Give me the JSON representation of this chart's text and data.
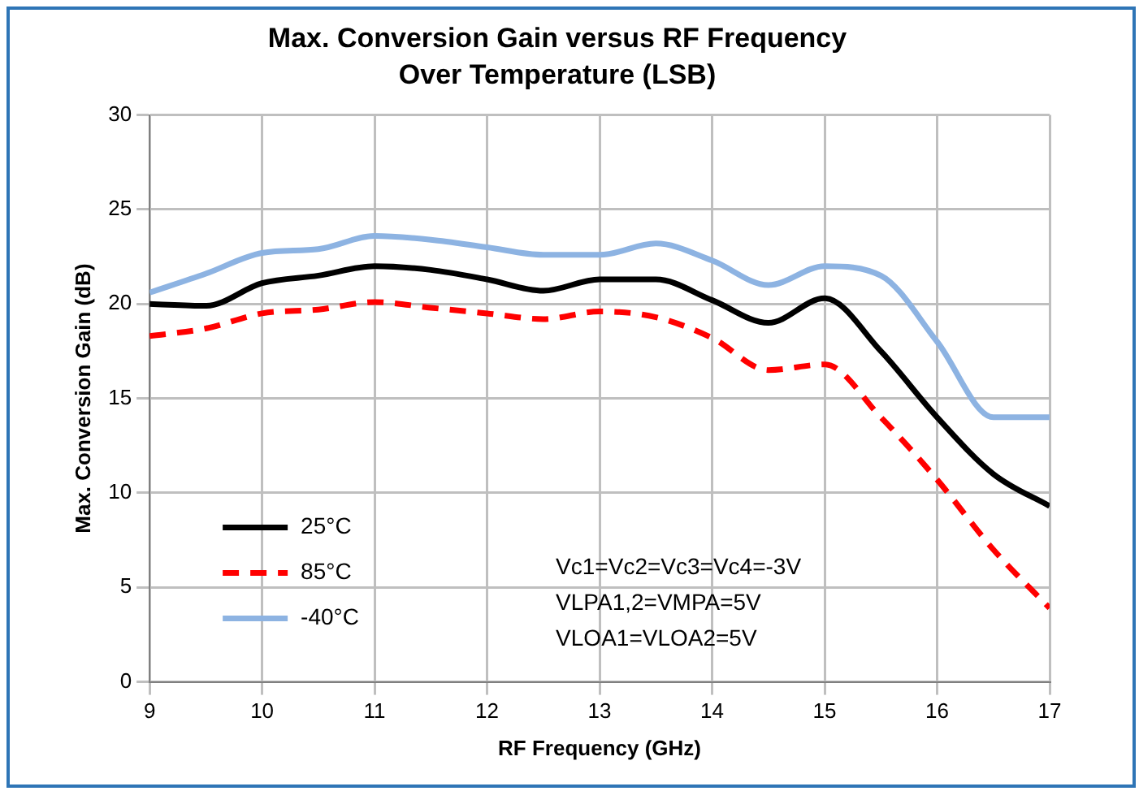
{
  "chart_data": {
    "type": "line",
    "title": "Max. Conversion Gain versus RF Frequency",
    "subtitle": "Over Temperature (LSB)",
    "xlabel": "RF Frequency (GHz)",
    "ylabel": "Max. Conversion Gain (dB)",
    "x": [
      9,
      9.5,
      10,
      10.5,
      11,
      11.5,
      12,
      12.5,
      13,
      13.5,
      14,
      14.5,
      15,
      15.5,
      16,
      16.5,
      17
    ],
    "series": [
      {
        "name": "25°C",
        "color": "#000000",
        "line_style": "solid",
        "values": [
          20,
          19.9,
          21.1,
          21.5,
          22,
          21.8,
          21.3,
          20.7,
          21.3,
          21.3,
          20.2,
          19,
          20.3,
          17.5,
          14,
          11,
          9.3
        ]
      },
      {
        "name": "85°C",
        "color": "#ff0000",
        "line_style": "dashed",
        "values": [
          18.3,
          18.7,
          19.5,
          19.7,
          20.1,
          19.8,
          19.5,
          19.2,
          19.6,
          19.3,
          18.2,
          16.5,
          16.8,
          14,
          10.7,
          7,
          3.9
        ]
      },
      {
        "name": "-40°C",
        "color": "#8db3e2",
        "line_style": "solid",
        "values": [
          20.6,
          21.6,
          22.7,
          22.9,
          23.6,
          23.4,
          23,
          22.6,
          22.6,
          23.2,
          22.3,
          21,
          22,
          21.5,
          18,
          14,
          14
        ]
      }
    ],
    "xlim": [
      9,
      17
    ],
    "xticks": [
      9,
      10,
      11,
      12,
      13,
      14,
      15,
      16,
      17
    ],
    "ylim": [
      0,
      30
    ],
    "yticks": [
      0,
      5,
      10,
      15,
      20,
      25,
      30
    ],
    "grid": true,
    "legend": "bottom left",
    "marker": "none",
    "annotations": [
      "Vc1=Vc2=Vc3=Vc4=-3V",
      "VLPA1,2=VMPA=5V",
      "VLOA1=VLOA2=5V"
    ]
  }
}
